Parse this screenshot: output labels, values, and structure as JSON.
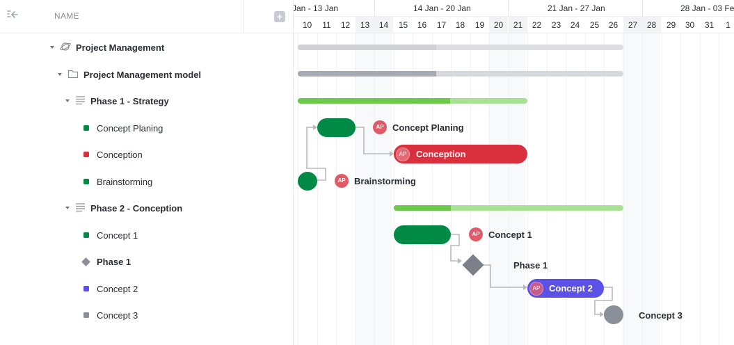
{
  "header": {
    "name_col": "NAME",
    "add_col": "+"
  },
  "timeline": {
    "weeks": [
      " Jan - 13 Jan",
      "14 Jan - 20 Jan",
      "21 Jan - 27 Jan",
      "28 Jan - 03 Feb"
    ],
    "days": [
      "10",
      "11",
      "12",
      "13",
      "14",
      "15",
      "16",
      "17",
      "18",
      "19",
      "20",
      "21",
      "22",
      "23",
      "24",
      "25",
      "26",
      "27",
      "28",
      "29",
      "30",
      "31",
      "1"
    ]
  },
  "tree": {
    "project": "Project Management",
    "folder": "Project Management model",
    "phase1": "Phase 1 - Strategy",
    "t_concept_planing": "Concept Planing",
    "t_conception": "Conception",
    "t_brainstorming": "Brainstorming",
    "phase2": "Phase 2 - Conception",
    "t_concept1": "Concept 1",
    "t_phase1_milestone": "Phase 1",
    "t_concept2": "Concept 2",
    "t_concept3": "Concept 3"
  },
  "bars": {
    "avatar_initials": "AP",
    "concept_planing": "Concept Planing",
    "conception": "Conception",
    "brainstorming": "Brainstorming",
    "concept1": "Concept 1",
    "phase1": "Phase 1",
    "concept2": "Concept 2",
    "concept3": "Concept 3"
  },
  "colors": {
    "green": "#008a45",
    "red": "#d9303e",
    "purple": "#5b50e8",
    "gray": "#8a8f98",
    "summary_green": "#6cc94c",
    "summary_green_light": "#a9e195"
  }
}
